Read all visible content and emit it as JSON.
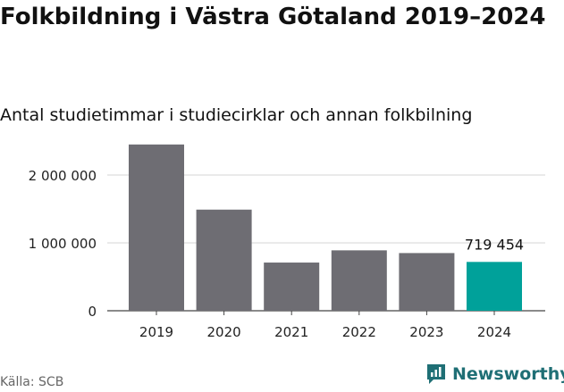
{
  "title": "Folkbildning i Västra Götaland 2019–2024",
  "subtitle": "Antal studietimmar i studiecirklar och annan folkbilning",
  "source": "Källa: SCB",
  "brand": {
    "name": "Newsworthy",
    "icon": "newsworthy-chart-bubble-icon"
  },
  "colors": {
    "bar": "#6e6d73",
    "highlight": "#00a19a",
    "grid": "#d6d6d6",
    "axis": "#444444",
    "brand": "#1f6f75"
  },
  "chart_data": {
    "type": "bar",
    "categories": [
      "2019",
      "2020",
      "2021",
      "2022",
      "2023",
      "2024"
    ],
    "values": [
      2450000,
      1490000,
      710000,
      890000,
      850000,
      719454
    ],
    "highlight_index": 5,
    "data_labels": [
      "",
      "",
      "",
      "",
      "",
      "719 454"
    ],
    "yticks": [
      0,
      1000000,
      2000000
    ],
    "ytick_labels": [
      "0",
      "1 000 000",
      "2 000 000"
    ],
    "ylim": [
      0,
      2500000
    ],
    "grid": true,
    "legend": "none"
  }
}
